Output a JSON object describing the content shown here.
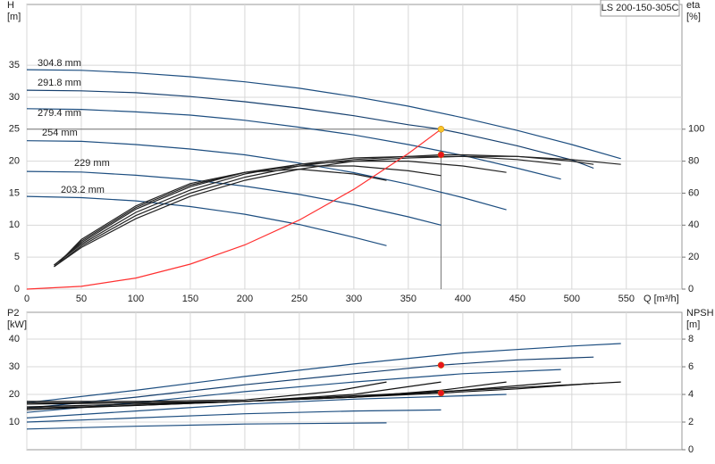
{
  "chart_data": [
    {
      "type": "line",
      "title": "LS 200-150-305C",
      "ylabel": [
        "H",
        "[m]"
      ],
      "y2label": [
        "eta",
        "[%]"
      ],
      "xlabel": "Q [m³/h]",
      "xlim": [
        0,
        601
      ],
      "xticks": [
        0,
        50,
        100,
        150,
        200,
        250,
        300,
        350,
        400,
        450,
        500,
        550
      ],
      "ylim": [
        0,
        44.5
      ],
      "yticks": [
        0,
        5,
        10,
        15,
        20,
        25,
        30,
        35
      ],
      "y2lim": [
        0,
        178
      ],
      "y2ticks": [
        0,
        20,
        40,
        60,
        80,
        100
      ],
      "grid": true,
      "duty_lines": true,
      "series": [
        {
          "name": "304.8 mm",
          "color": "#1d4e80",
          "x": [
            0,
            50,
            100,
            150,
            200,
            250,
            300,
            350,
            400,
            450,
            500,
            545
          ],
          "values": [
            34.3,
            34.2,
            33.8,
            33.2,
            32.4,
            31.4,
            30.1,
            28.6,
            26.8,
            24.8,
            22.6,
            20.4
          ]
        },
        {
          "name": "291.8 mm",
          "color": "#153f6e",
          "x": [
            0,
            50,
            100,
            150,
            200,
            250,
            300,
            350,
            380,
            400,
            450,
            500,
            520
          ],
          "values": [
            31.1,
            31.0,
            30.7,
            30.1,
            29.3,
            28.3,
            27.1,
            25.7,
            25.0,
            24.3,
            22.4,
            20.2,
            18.9
          ]
        },
        {
          "name": "279.4 mm",
          "color": "#1d4e80",
          "x": [
            0,
            50,
            100,
            150,
            200,
            250,
            300,
            350,
            400,
            450,
            490
          ],
          "values": [
            28.2,
            28.1,
            27.7,
            27.2,
            26.4,
            25.3,
            24.1,
            22.6,
            20.9,
            18.9,
            17.2
          ]
        },
        {
          "name": "254 mm",
          "color": "#1d4e80",
          "x": [
            0,
            50,
            100,
            150,
            200,
            250,
            300,
            350,
            400,
            440
          ],
          "values": [
            23.2,
            23.1,
            22.6,
            21.9,
            21.0,
            19.7,
            18.2,
            16.4,
            14.3,
            12.4
          ]
        },
        {
          "name": "229 mm",
          "color": "#1d4e80",
          "x": [
            0,
            50,
            100,
            150,
            200,
            250,
            300,
            350,
            380
          ],
          "values": [
            18.4,
            18.3,
            17.8,
            17.1,
            16.1,
            14.8,
            13.2,
            11.3,
            10.0
          ]
        },
        {
          "name": "203.2 mm",
          "color": "#1d4e80",
          "x": [
            0,
            50,
            100,
            150,
            200,
            250,
            300,
            330
          ],
          "values": [
            14.5,
            14.3,
            13.8,
            12.9,
            11.7,
            10.1,
            8.1,
            6.8
          ]
        },
        {
          "color": "#222222",
          "axis": "y2",
          "x": [
            25,
            50,
            100,
            150,
            200,
            250,
            300,
            350,
            400,
            450,
            500,
            545
          ],
          "values": [
            14,
            26,
            44,
            58,
            68,
            75,
            80,
            82,
            83,
            83,
            81,
            78
          ]
        },
        {
          "color": "#222222",
          "axis": "y2",
          "x": [
            25,
            50,
            100,
            150,
            200,
            250,
            300,
            350,
            380,
            400,
            450,
            500,
            520
          ],
          "values": [
            14,
            27,
            46,
            60,
            70,
            77,
            81,
            83,
            84,
            84,
            83,
            80,
            78
          ]
        },
        {
          "color": "#222222",
          "axis": "y2",
          "x": [
            25,
            50,
            100,
            150,
            200,
            250,
            300,
            350,
            400,
            450,
            490
          ],
          "values": [
            15,
            28,
            48,
            62,
            72,
            78,
            82,
            83,
            83,
            81,
            78
          ]
        },
        {
          "color": "#222222",
          "axis": "y2",
          "x": [
            25,
            50,
            100,
            150,
            200,
            250,
            300,
            350,
            400,
            440
          ],
          "values": [
            15,
            29,
            50,
            64,
            73,
            78,
            80,
            80,
            77,
            73
          ]
        },
        {
          "color": "#222222",
          "axis": "y2",
          "x": [
            30,
            50,
            100,
            150,
            200,
            250,
            300,
            350,
            380
          ],
          "values": [
            17,
            30,
            51,
            65,
            73,
            77,
            77,
            74,
            71
          ]
        },
        {
          "color": "#222222",
          "axis": "y2",
          "x": [
            30,
            50,
            100,
            150,
            200,
            250,
            300,
            330
          ],
          "values": [
            17,
            31,
            52,
            66,
            73,
            75,
            72,
            68
          ]
        },
        {
          "color": "#ff3030",
          "x": [
            0,
            50,
            100,
            150,
            200,
            250,
            300,
            350,
            380
          ],
          "values": [
            0,
            0.43,
            1.73,
            3.9,
            6.9,
            10.8,
            15.6,
            21.2,
            25
          ]
        }
      ],
      "points": [
        {
          "x": 380,
          "value": 25,
          "color": "#f7c52b"
        },
        {
          "x": 380,
          "value": 84,
          "axis": "y2",
          "color": "#e8141b"
        }
      ]
    },
    {
      "type": "line",
      "ylabel": [
        "P2",
        "[kW]"
      ],
      "y2label": [
        "NPSH",
        "[m]"
      ],
      "xlim": [
        0,
        601
      ],
      "xticks": [
        0,
        50,
        100,
        150,
        200,
        250,
        300,
        350,
        400,
        450,
        500,
        550
      ],
      "xtick_labels": false,
      "ylim": [
        0,
        49.7
      ],
      "yticks": [
        10,
        20,
        30,
        40
      ],
      "y2lim": [
        0,
        9.94
      ],
      "y2ticks": [
        0,
        2,
        4,
        6,
        8
      ],
      "grid": true,
      "series": [
        {
          "color": "#1d4e80",
          "x": [
            0,
            100,
            200,
            300,
            400,
            500,
            545
          ],
          "values": [
            17,
            21.5,
            26.5,
            31,
            35,
            37.5,
            38.4
          ]
        },
        {
          "color": "#153f6e",
          "x": [
            0,
            100,
            200,
            300,
            380,
            450,
            520
          ],
          "values": [
            15,
            19,
            23.5,
            27.5,
            30.6,
            32.5,
            33.5
          ]
        },
        {
          "color": "#1d4e80",
          "x": [
            0,
            100,
            200,
            300,
            400,
            490
          ],
          "values": [
            13.5,
            17,
            21,
            24.5,
            27.5,
            29
          ]
        },
        {
          "color": "#1d4e80",
          "x": [
            0,
            100,
            200,
            300,
            400,
            440
          ],
          "values": [
            11.5,
            14,
            16.5,
            18.3,
            19.5,
            20
          ]
        },
        {
          "color": "#1d4e80",
          "x": [
            0,
            100,
            200,
            300,
            380
          ],
          "values": [
            10,
            11.5,
            13,
            14,
            14.4
          ]
        },
        {
          "color": "#1d4e80",
          "x": [
            0,
            100,
            200,
            330
          ],
          "values": [
            7.5,
            8.5,
            9.3,
            9.7
          ]
        },
        {
          "color": "#111111",
          "axis": "y2",
          "x": [
            0,
            100,
            200,
            300,
            380,
            450,
            545
          ],
          "values": [
            2.9,
            3.2,
            3.5,
            3.9,
            4.2,
            4.5,
            4.9
          ]
        },
        {
          "color": "#111111",
          "axis": "y2",
          "x": [
            0,
            100,
            200,
            300,
            380,
            450,
            520
          ],
          "values": [
            3.0,
            3.2,
            3.5,
            3.8,
            4.1,
            4.4,
            4.8
          ]
        },
        {
          "color": "#111111",
          "axis": "y2",
          "x": [
            0,
            100,
            200,
            300,
            400,
            490
          ],
          "values": [
            3.1,
            3.3,
            3.5,
            3.8,
            4.3,
            4.9
          ]
        },
        {
          "color": "#111111",
          "axis": "y2",
          "x": [
            0,
            100,
            200,
            300,
            380,
            440
          ],
          "values": [
            3.3,
            3.4,
            3.5,
            3.8,
            4.3,
            4.9
          ]
        },
        {
          "color": "#111111",
          "axis": "y2",
          "x": [
            0,
            100,
            200,
            300,
            380
          ],
          "values": [
            3.4,
            3.4,
            3.5,
            4.0,
            4.9
          ]
        },
        {
          "color": "#111111",
          "axis": "y2",
          "x": [
            0,
            100,
            200,
            280,
            330
          ],
          "values": [
            3.5,
            3.5,
            3.6,
            4.2,
            4.9
          ]
        }
      ],
      "points": [
        {
          "x": 380,
          "value": 30.6,
          "color": "#e8141b"
        },
        {
          "x": 380,
          "value": 4.1,
          "axis": "y2",
          "color": "#e8141b"
        }
      ]
    }
  ]
}
